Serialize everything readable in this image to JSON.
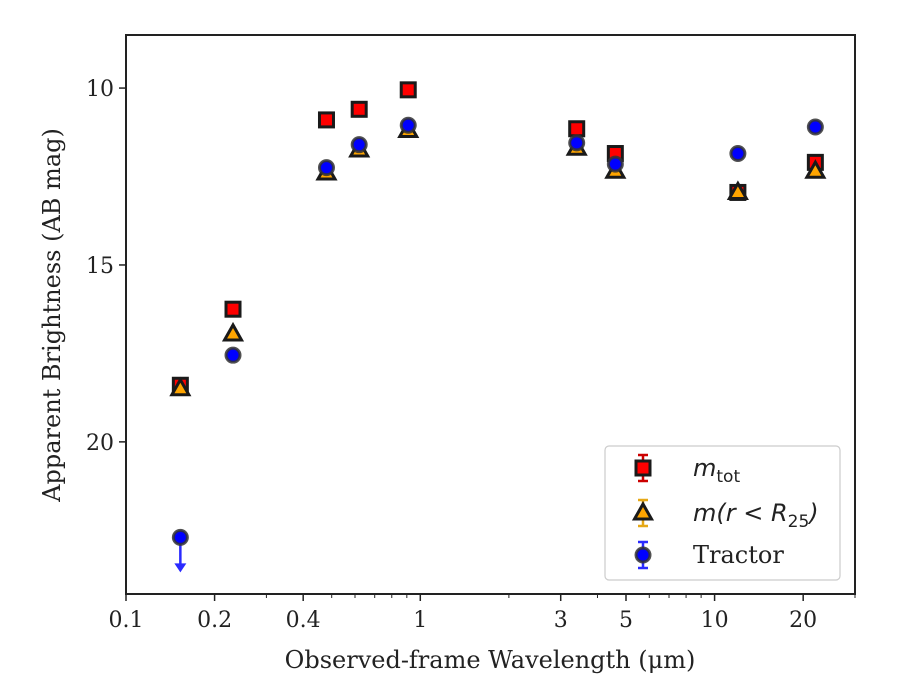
{
  "chart_data": {
    "type": "scatter",
    "title": "",
    "xlabel": "Observed-frame Wavelength (μm)",
    "ylabel": "Apparent Brightness (AB mag)",
    "xscale": "log",
    "yinverted": true,
    "xlim": [
      0.1,
      30
    ],
    "ylim": [
      8.5,
      24.3
    ],
    "xticks": [
      0.1,
      0.2,
      0.4,
      1,
      3,
      5,
      10,
      20
    ],
    "xtick_labels": [
      "0.1",
      "0.2",
      "0.4",
      "1",
      "3",
      "5",
      "10",
      "20"
    ],
    "yticks": [
      10,
      15,
      20
    ],
    "ytick_labels": [
      "10",
      "15",
      "20"
    ],
    "grid": false,
    "legend_position": "bottom-right",
    "series": [
      {
        "name": "m_tot",
        "legend_label": "m",
        "legend_sub": "tot",
        "marker": "square",
        "color": "#ff0000",
        "errcolor": "#cc0000",
        "x": [
          0.153,
          0.231,
          0.48,
          0.62,
          0.91,
          3.4,
          4.6,
          12.0,
          22.0
        ],
        "y": [
          18.4,
          16.25,
          10.9,
          10.6,
          10.05,
          11.15,
          11.85,
          12.95,
          12.1
        ]
      },
      {
        "name": "m(r<R25)",
        "legend_label": "m(r < R",
        "legend_sub": "25",
        "legend_close": ")",
        "marker": "triangle",
        "color": "#ffa500",
        "errcolor": "#e6a817",
        "x": [
          0.153,
          0.231,
          0.48,
          0.62,
          0.91,
          3.4,
          4.6,
          12.0,
          22.0
        ],
        "y": [
          18.5,
          16.95,
          12.4,
          11.75,
          11.2,
          11.7,
          12.35,
          12.95,
          12.35
        ]
      },
      {
        "name": "Tractor",
        "legend_label": "Tractor",
        "marker": "circle",
        "color": "#0000ff",
        "errcolor": "#2a2aff",
        "x": [
          0.153,
          0.231,
          0.48,
          0.62,
          0.91,
          3.4,
          4.6,
          12.0,
          22.0
        ],
        "y": [
          22.7,
          17.55,
          12.25,
          11.6,
          11.05,
          11.55,
          12.15,
          11.85,
          11.1
        ],
        "upper_limit_index": 0
      }
    ]
  }
}
